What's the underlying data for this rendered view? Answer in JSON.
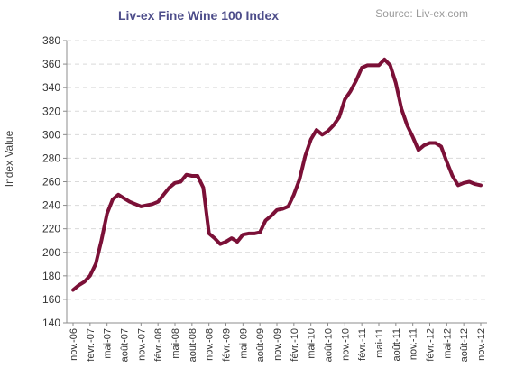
{
  "chart_data": {
    "type": "line",
    "title": "Liv-ex Fine Wine 100 Index",
    "source": "Source: Liv-ex.com",
    "xlabel": "",
    "ylabel": "Index Value",
    "ylim": [
      140,
      380
    ],
    "ytick_step": 20,
    "grid": true,
    "legend": "none",
    "line_color": "#7b1037",
    "grid_color": "#d9d9d9",
    "x_tick_labels": [
      "nov.-06",
      "févr.-07",
      "mai-07",
      "août-07",
      "nov.-07",
      "févr.-08",
      "mai-08",
      "août-08",
      "nov.-08",
      "févr.-09",
      "mai-09",
      "août-09",
      "nov.-09",
      "févr.-10",
      "mai-10",
      "août-10",
      "nov.-10",
      "févr.-11",
      "mai-11",
      "août-11",
      "nov.-11",
      "févr.-12",
      "mai-12",
      "août-12",
      "nov.-12"
    ],
    "x": [
      "2006-11",
      "2006-12",
      "2007-01",
      "2007-02",
      "2007-03",
      "2007-04",
      "2007-05",
      "2007-06",
      "2007-07",
      "2007-08",
      "2007-09",
      "2007-10",
      "2007-11",
      "2007-12",
      "2008-01",
      "2008-02",
      "2008-03",
      "2008-04",
      "2008-05",
      "2008-06",
      "2008-07",
      "2008-08",
      "2008-09",
      "2008-10",
      "2008-11",
      "2008-12",
      "2009-01",
      "2009-02",
      "2009-03",
      "2009-04",
      "2009-05",
      "2009-06",
      "2009-07",
      "2009-08",
      "2009-09",
      "2009-10",
      "2009-11",
      "2009-12",
      "2010-01",
      "2010-02",
      "2010-03",
      "2010-04",
      "2010-05",
      "2010-06",
      "2010-07",
      "2010-08",
      "2010-09",
      "2010-10",
      "2010-11",
      "2010-12",
      "2011-01",
      "2011-02",
      "2011-03",
      "2011-04",
      "2011-05",
      "2011-06",
      "2011-07",
      "2011-08",
      "2011-09",
      "2011-10",
      "2011-11",
      "2011-12",
      "2012-01",
      "2012-02",
      "2012-03",
      "2012-04",
      "2012-05",
      "2012-06",
      "2012-07",
      "2012-08",
      "2012-09",
      "2012-10",
      "2012-11"
    ],
    "series": [
      {
        "values": [
          168,
          172,
          175,
          180,
          190,
          210,
          233,
          245,
          249,
          246,
          243,
          241,
          239,
          240,
          241,
          243,
          249,
          255,
          259,
          260,
          266,
          265,
          265,
          255,
          216,
          212,
          207,
          209,
          212,
          209,
          215,
          216,
          216,
          217,
          227,
          231,
          236,
          237,
          239,
          249,
          262,
          282,
          296,
          304,
          300,
          303,
          308,
          315,
          330,
          337,
          346,
          357,
          359,
          359,
          359,
          364,
          359,
          344,
          322,
          308,
          298,
          287,
          291,
          293,
          293,
          290,
          277,
          265,
          257,
          259,
          260,
          258,
          257
        ]
      }
    ]
  }
}
